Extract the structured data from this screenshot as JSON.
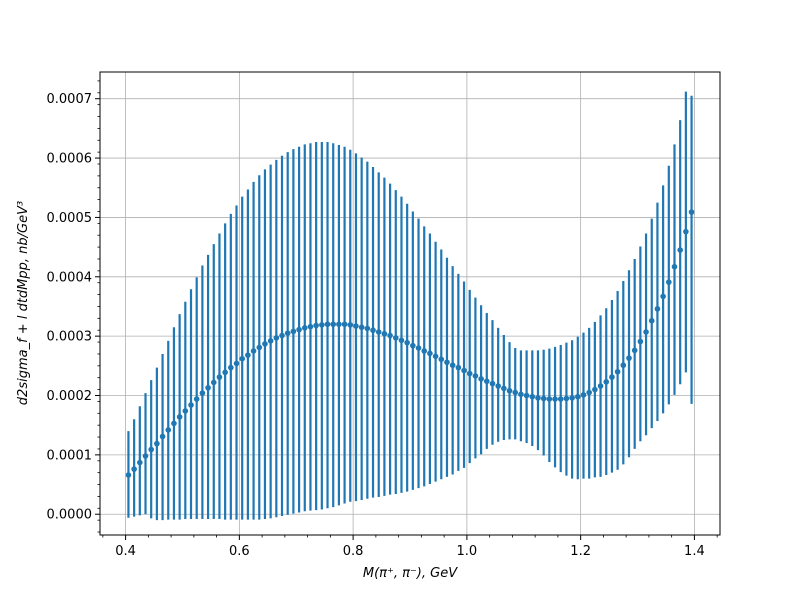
{
  "chart_data": {
    "type": "scatter",
    "errorbars": true,
    "xlabel": "M(π⁺, π⁻), GeV",
    "ylabel": "d2sigma_f + l dtdMpp, nb/GeV³",
    "xlim": [
      0.355,
      1.445
    ],
    "ylim": [
      -3.5e-05,
      0.000745
    ],
    "xticks": [
      0.4,
      0.6,
      0.8,
      1.0,
      1.2,
      1.4
    ],
    "xtick_labels": [
      "0.4",
      "0.6",
      "0.8",
      "1.0",
      "1.2",
      "1.4"
    ],
    "yticks": [
      0,
      0.0001,
      0.0002,
      0.0003,
      0.0004,
      0.0005,
      0.0006,
      0.0007
    ],
    "ytick_labels": [
      "0.0000",
      "0.0001",
      "0.0002",
      "0.0003",
      "0.0004",
      "0.0005",
      "0.0006",
      "0.0007"
    ],
    "grid": true,
    "color": "#1f77b4",
    "series": [
      {
        "x": [
          0.405,
          0.415,
          0.425,
          0.435,
          0.445,
          0.455,
          0.465,
          0.475,
          0.485,
          0.495,
          0.505,
          0.515,
          0.525,
          0.535,
          0.545,
          0.555,
          0.565,
          0.575,
          0.585,
          0.595,
          0.605,
          0.615,
          0.625,
          0.635,
          0.645,
          0.655,
          0.665,
          0.675,
          0.685,
          0.695,
          0.705,
          0.715,
          0.725,
          0.735,
          0.745,
          0.755,
          0.765,
          0.775,
          0.785,
          0.795,
          0.805,
          0.815,
          0.825,
          0.835,
          0.845,
          0.855,
          0.865,
          0.875,
          0.885,
          0.895,
          0.905,
          0.915,
          0.925,
          0.935,
          0.945,
          0.955,
          0.965,
          0.975,
          0.985,
          0.995,
          1.005,
          1.015,
          1.025,
          1.035,
          1.045,
          1.055,
          1.065,
          1.075,
          1.085,
          1.095,
          1.105,
          1.115,
          1.125,
          1.135,
          1.145,
          1.155,
          1.165,
          1.175,
          1.185,
          1.195,
          1.205,
          1.215,
          1.225,
          1.235,
          1.245,
          1.255,
          1.265,
          1.275,
          1.285,
          1.295,
          1.305,
          1.315,
          1.325,
          1.335,
          1.345,
          1.355,
          1.365,
          1.375,
          1.385,
          1.395
        ],
        "y": [
          6.6e-05,
          7.6e-05,
          8.7e-05,
          9.8e-05,
          0.000109,
          0.000119,
          0.000131,
          0.000142,
          0.000153,
          0.000164,
          0.000174,
          0.000184,
          0.000194,
          0.000204,
          0.000213,
          0.000222,
          0.000231,
          0.000239,
          0.000247,
          0.000254,
          0.000262,
          0.000268,
          0.000275,
          0.000281,
          0.000287,
          0.000292,
          0.000297,
          0.000301,
          0.000305,
          0.000308,
          0.000311,
          0.000314,
          0.000316,
          0.000318,
          0.000319,
          0.00032,
          0.00032,
          0.00032,
          0.00032,
          0.000319,
          0.000317,
          0.000315,
          0.000313,
          0.00031,
          0.000307,
          0.000304,
          0.000301,
          0.000297,
          0.000293,
          0.000289,
          0.000284,
          0.00028,
          0.000275,
          0.000271,
          0.000266,
          0.000261,
          0.000256,
          0.000251,
          0.000247,
          0.000242,
          0.000237,
          0.000233,
          0.000228,
          0.000224,
          0.00022,
          0.000216,
          0.000212,
          0.000208,
          0.000205,
          0.000202,
          0.0002,
          0.000198,
          0.000196,
          0.000195,
          0.000194,
          0.000194,
          0.000194,
          0.000195,
          0.000196,
          0.000198,
          0.000201,
          0.000205,
          0.00021,
          0.000216,
          0.000223,
          0.000231,
          0.00024,
          0.000251,
          0.000263,
          0.000276,
          0.000291,
          0.000307,
          0.000326,
          0.000346,
          0.000367,
          0.000391,
          0.000417,
          0.000445,
          0.000476,
          0.000509
        ],
        "yerr_low": [
          7.2e-05,
          8e-05,
          8.9e-05,
          9.8e-05,
          0.000116,
          0.000129,
          0.000141,
          0.000151,
          0.000162,
          0.000173,
          0.000182,
          0.000192,
          0.000202,
          0.000212,
          0.000221,
          0.00023,
          0.000239,
          0.000248,
          0.000256,
          0.000263,
          0.000271,
          0.000277,
          0.000284,
          0.00029,
          0.000295,
          0.000299,
          0.000302,
          0.000304,
          0.000306,
          0.000307,
          0.000308,
          0.000309,
          0.00031,
          0.000311,
          0.000311,
          0.00031,
          0.000308,
          0.000305,
          0.000302,
          0.000298,
          0.000295,
          0.000291,
          0.000287,
          0.000282,
          0.000278,
          0.000273,
          0.000268,
          0.000263,
          0.000257,
          0.000251,
          0.000243,
          0.000236,
          0.000228,
          0.00022,
          0.000211,
          0.000202,
          0.000193,
          0.000184,
          0.000174,
          0.000164,
          0.000151,
          0.000139,
          0.000127,
          0.000114,
          0.000103,
          9.4e-05,
          8.7e-05,
          8.2e-05,
          7.9e-05,
          7.9e-05,
          8e-05,
          8.3e-05,
          8.8e-05,
          9.6e-05,
          0.000106,
          0.000115,
          0.000123,
          0.00013,
          0.000136,
          0.000139,
          0.000141,
          0.000145,
          0.000148,
          0.000153,
          0.000157,
          0.000161,
          0.000165,
          0.000167,
          0.000167,
          0.000166,
          0.000168,
          0.000174,
          0.000181,
          0.000189,
          0.000197,
          0.000206,
          0.000216,
          0.000226,
          0.000237,
          0.000323
        ],
        "yerr_high": [
          7.4e-05,
          8.4e-05,
          9.5e-05,
          0.000106,
          0.000117,
          0.000128,
          0.000139,
          0.00015,
          0.000162,
          0.000173,
          0.000184,
          0.000195,
          0.000205,
          0.000215,
          0.000224,
          0.000233,
          0.000242,
          0.000251,
          0.000259,
          0.000266,
          0.000273,
          0.000279,
          0.000285,
          0.00029,
          0.000294,
          0.000297,
          0.0003,
          0.000303,
          0.000305,
          0.000307,
          0.000308,
          0.000309,
          0.000309,
          0.000309,
          0.000308,
          0.000307,
          0.000305,
          0.000302,
          0.000299,
          0.000295,
          0.000291,
          0.000286,
          0.000281,
          0.000275,
          0.000269,
          0.000263,
          0.000256,
          0.000249,
          0.000242,
          0.000234,
          0.000226,
          0.000218,
          0.00021,
          0.000202,
          0.000193,
          0.000185,
          0.000176,
          0.000167,
          0.000158,
          0.00015,
          0.000141,
          0.000132,
          0.000124,
          0.000115,
          0.000107,
          9.8e-05,
          9e-05,
          8.2e-05,
          7.5e-05,
          7.4e-05,
          7.6e-05,
          7.8e-05,
          8e-05,
          8.2e-05,
          8.5e-05,
          8.8e-05,
          9.1e-05,
          9.4e-05,
          9.7e-05,
          0.000101,
          0.000105,
          0.000109,
          0.000114,
          0.000119,
          0.000124,
          0.00013,
          0.000136,
          0.000142,
          0.000148,
          0.000154,
          0.00016,
          0.000166,
          0.000172,
          0.000179,
          0.000187,
          0.000196,
          0.000206,
          0.000219,
          0.000236,
          0.000196
        ]
      }
    ]
  }
}
